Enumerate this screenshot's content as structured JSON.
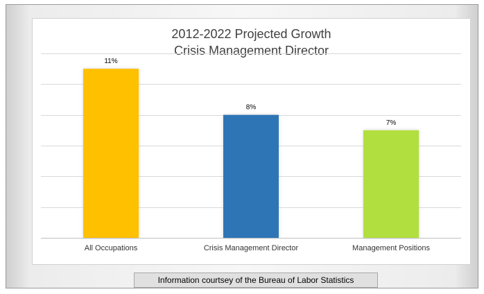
{
  "chart_data": {
    "type": "bar",
    "title": [
      "2012-2022 Projected Growth",
      "Crisis Management Director"
    ],
    "categories": [
      "All Occupations",
      "Crisis Management Director",
      "Management Positions"
    ],
    "values": [
      11,
      8,
      7
    ],
    "data_labels": [
      "11%",
      "8%",
      "7%"
    ],
    "colors": [
      "#ffc000",
      "#2e75b6",
      "#b2df3f"
    ],
    "ylim": [
      0,
      12
    ],
    "grid": true,
    "legend": "none",
    "xlabel": "",
    "ylabel": ""
  },
  "caption": "Information courtsey of the Bureau of Labor Statistics"
}
